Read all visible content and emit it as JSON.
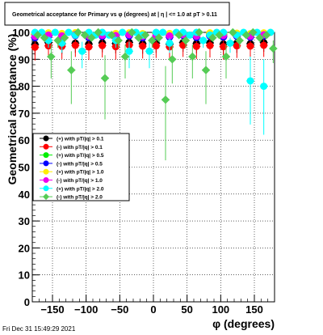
{
  "title": "Geometrical acceptance for Primary vs φ (degrees) at | η | <= 1.0 at pT > 0.11",
  "footer": "Fri Dec 31 15:49:29 2021",
  "chart_data": {
    "type": "scatter",
    "xlabel": "φ (degrees)",
    "ylabel": "Geometrical acceptance (%)",
    "xlim": [
      -180,
      180
    ],
    "ylim": [
      0,
      100
    ],
    "x_ticks": [
      -150,
      -100,
      -50,
      0,
      50,
      100,
      150
    ],
    "x_tick_labels": [
      "−150",
      "−100",
      "−50",
      "0",
      "50",
      "100",
      "150"
    ],
    "y_ticks": [
      0,
      10,
      20,
      30,
      40,
      50,
      60,
      70,
      80,
      90,
      100
    ],
    "y_tick_labels": [
      "0",
      "10",
      "20",
      "30",
      "40",
      "50",
      "60",
      "70",
      "80",
      "90",
      "100"
    ],
    "grid": true,
    "legend_position": "center-left",
    "series": [
      {
        "name": "(+) with pT/|q| > 0.1",
        "color": "#000000",
        "marker": "circle",
        "x": [
          -176,
          -156,
          -136,
          -116,
          -96,
          -76,
          -56,
          -36,
          -16,
          4,
          24,
          44,
          64,
          84,
          104,
          124,
          144,
          164
        ],
        "y": [
          95.5,
          96.2,
          95.8,
          96.0,
          95.7,
          96.1,
          95.9,
          96.3,
          95.8,
          96.0,
          95.6,
          96.2,
          95.9,
          96.1,
          95.7,
          96.0,
          95.8,
          96.2
        ]
      },
      {
        "name": "(-) with pT/|q| > 0.1",
        "color": "#ff0000",
        "marker": "circle",
        "x": [
          -176,
          -156,
          -136,
          -116,
          -96,
          -76,
          -56,
          -36,
          -16,
          4,
          24,
          44,
          64,
          84,
          104,
          124,
          144,
          164
        ],
        "y": [
          94.5,
          95.0,
          94.8,
          95.2,
          94.6,
          95.1,
          94.7,
          95.3,
          94.9,
          95.0,
          94.6,
          95.2,
          94.8,
          95.1,
          94.7,
          95.0,
          94.9,
          95.2
        ]
      },
      {
        "name": "(+) with pT/|q| > 0.5",
        "color": "#00ee00",
        "marker": "circle",
        "x": [
          -176,
          -156,
          -136,
          -116,
          -96,
          -76,
          -56,
          -36,
          -16,
          4,
          24,
          44,
          64,
          84,
          104,
          124,
          144,
          164
        ],
        "y": [
          99.2,
          99.5,
          99.0,
          99.6,
          99.3,
          99.4,
          99.1,
          99.7,
          99.2,
          99.5,
          99.0,
          99.6,
          99.3,
          99.4,
          99.1,
          99.5,
          99.2,
          99.6
        ]
      },
      {
        "name": "(-) with pT/|q| > 0.5",
        "color": "#0000ff",
        "marker": "circle",
        "x": [
          -176,
          -156,
          -136,
          -116,
          -96,
          -76,
          -56,
          -36,
          -16,
          4,
          24,
          44,
          64,
          84,
          104,
          124,
          144,
          164
        ],
        "y": [
          98.0,
          98.6,
          98.2,
          98.8,
          98.1,
          98.5,
          98.3,
          98.7,
          98.0,
          98.4,
          98.2,
          98.9,
          98.1,
          98.6,
          98.3,
          98.5,
          98.2,
          98.7
        ]
      },
      {
        "name": "(+) with pT/|q| > 1.0",
        "color": "#ffee00",
        "marker": "circle",
        "x": [
          -176,
          -156,
          -136,
          -116,
          -96,
          -76,
          -56,
          -36,
          -16,
          4,
          24,
          44,
          64,
          84,
          104,
          124,
          144,
          164
        ],
        "y": [
          99.5,
          99.8,
          99.6,
          99.9,
          99.5,
          99.7,
          99.6,
          99.8,
          99.5,
          99.7,
          99.6,
          99.9,
          99.5,
          99.8,
          99.6,
          99.7,
          99.5,
          99.8
        ]
      },
      {
        "name": "(-) with pT/|q| > 1.0",
        "color": "#ee00ee",
        "marker": "circle",
        "x": [
          -176,
          -156,
          -136,
          -116,
          -96,
          -76,
          -56,
          -36,
          -16,
          4,
          24,
          44,
          64,
          84,
          104,
          124,
          144,
          164
        ],
        "y": [
          98.5,
          99.0,
          98.7,
          99.2,
          98.6,
          98.9,
          98.8,
          99.1,
          98.5,
          98.9,
          98.7,
          99.2,
          98.6,
          99.0,
          98.8,
          98.9,
          98.6,
          99.1
        ]
      },
      {
        "name": "(+) with pT/|q| > 2.0",
        "color": "#00ffff",
        "marker": "circle",
        "x": [
          -176,
          -166,
          -156,
          -146,
          -136,
          -126,
          -116,
          -106,
          -96,
          -86,
          -76,
          -66,
          -56,
          -46,
          -36,
          -26,
          -16,
          -6,
          4,
          14,
          24,
          34,
          44,
          54,
          64,
          74,
          84,
          94,
          104,
          114,
          124,
          134,
          144,
          154,
          164,
          174
        ],
        "y": [
          100,
          100,
          97,
          100,
          96,
          100,
          99,
          93,
          100,
          99,
          100,
          99,
          97,
          100,
          93,
          100,
          99,
          93,
          100,
          100,
          96,
          100,
          100,
          99,
          100,
          97,
          99,
          100,
          100,
          96,
          99,
          100,
          82,
          100,
          80,
          100
        ]
      },
      {
        "name": "(-) with pT/|q| > 2.0",
        "color": "#55cc55",
        "marker": "diamond",
        "x": [
          -172,
          -162,
          -152,
          -142,
          -132,
          -122,
          -112,
          -102,
          -92,
          -82,
          -72,
          -62,
          -52,
          -42,
          -32,
          -22,
          -12,
          -2,
          8,
          18,
          28,
          38,
          48,
          58,
          68,
          78,
          88,
          98,
          108,
          118,
          128,
          138,
          148,
          158,
          168,
          178
        ],
        "y": [
          99,
          98,
          91,
          97,
          98,
          86,
          100,
          99,
          98,
          100,
          83,
          99,
          97,
          91,
          100,
          98,
          99,
          97,
          98,
          75,
          90,
          99,
          97,
          91,
          100,
          86,
          98,
          99,
          91,
          100,
          97,
          99,
          100,
          98,
          99,
          94
        ]
      }
    ]
  }
}
